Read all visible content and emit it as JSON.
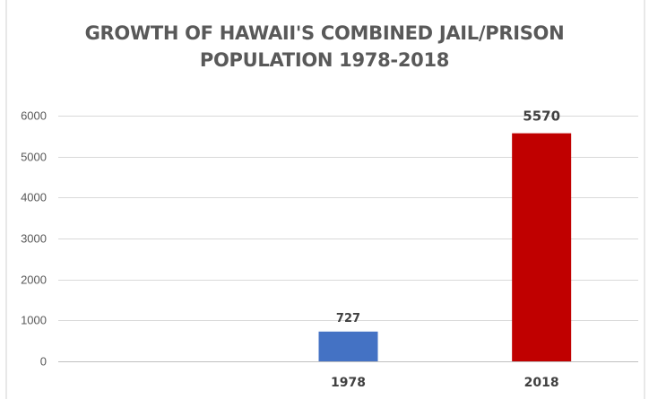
{
  "chart_data": {
    "type": "bar",
    "title_lines": [
      "GROWTH OF HAWAII'S COMBINED JAIL/PRISON",
      "POPULATION 1978-2018"
    ],
    "categories": [
      "",
      "1978",
      "2018"
    ],
    "values": [
      null,
      727,
      5570
    ],
    "data_labels": [
      "",
      "727",
      "5570"
    ],
    "bar_colors": [
      "#4472c4",
      "#4472c4",
      "#c00000"
    ],
    "xlabel": "",
    "ylabel": "",
    "ylim": [
      0,
      6000
    ],
    "yticks": [
      0,
      1000,
      2000,
      3000,
      4000,
      5000,
      6000
    ],
    "grid": true,
    "legend": "none",
    "gridline_color": "#d9d9d9",
    "axis_line_color": "#bfbfbf"
  }
}
